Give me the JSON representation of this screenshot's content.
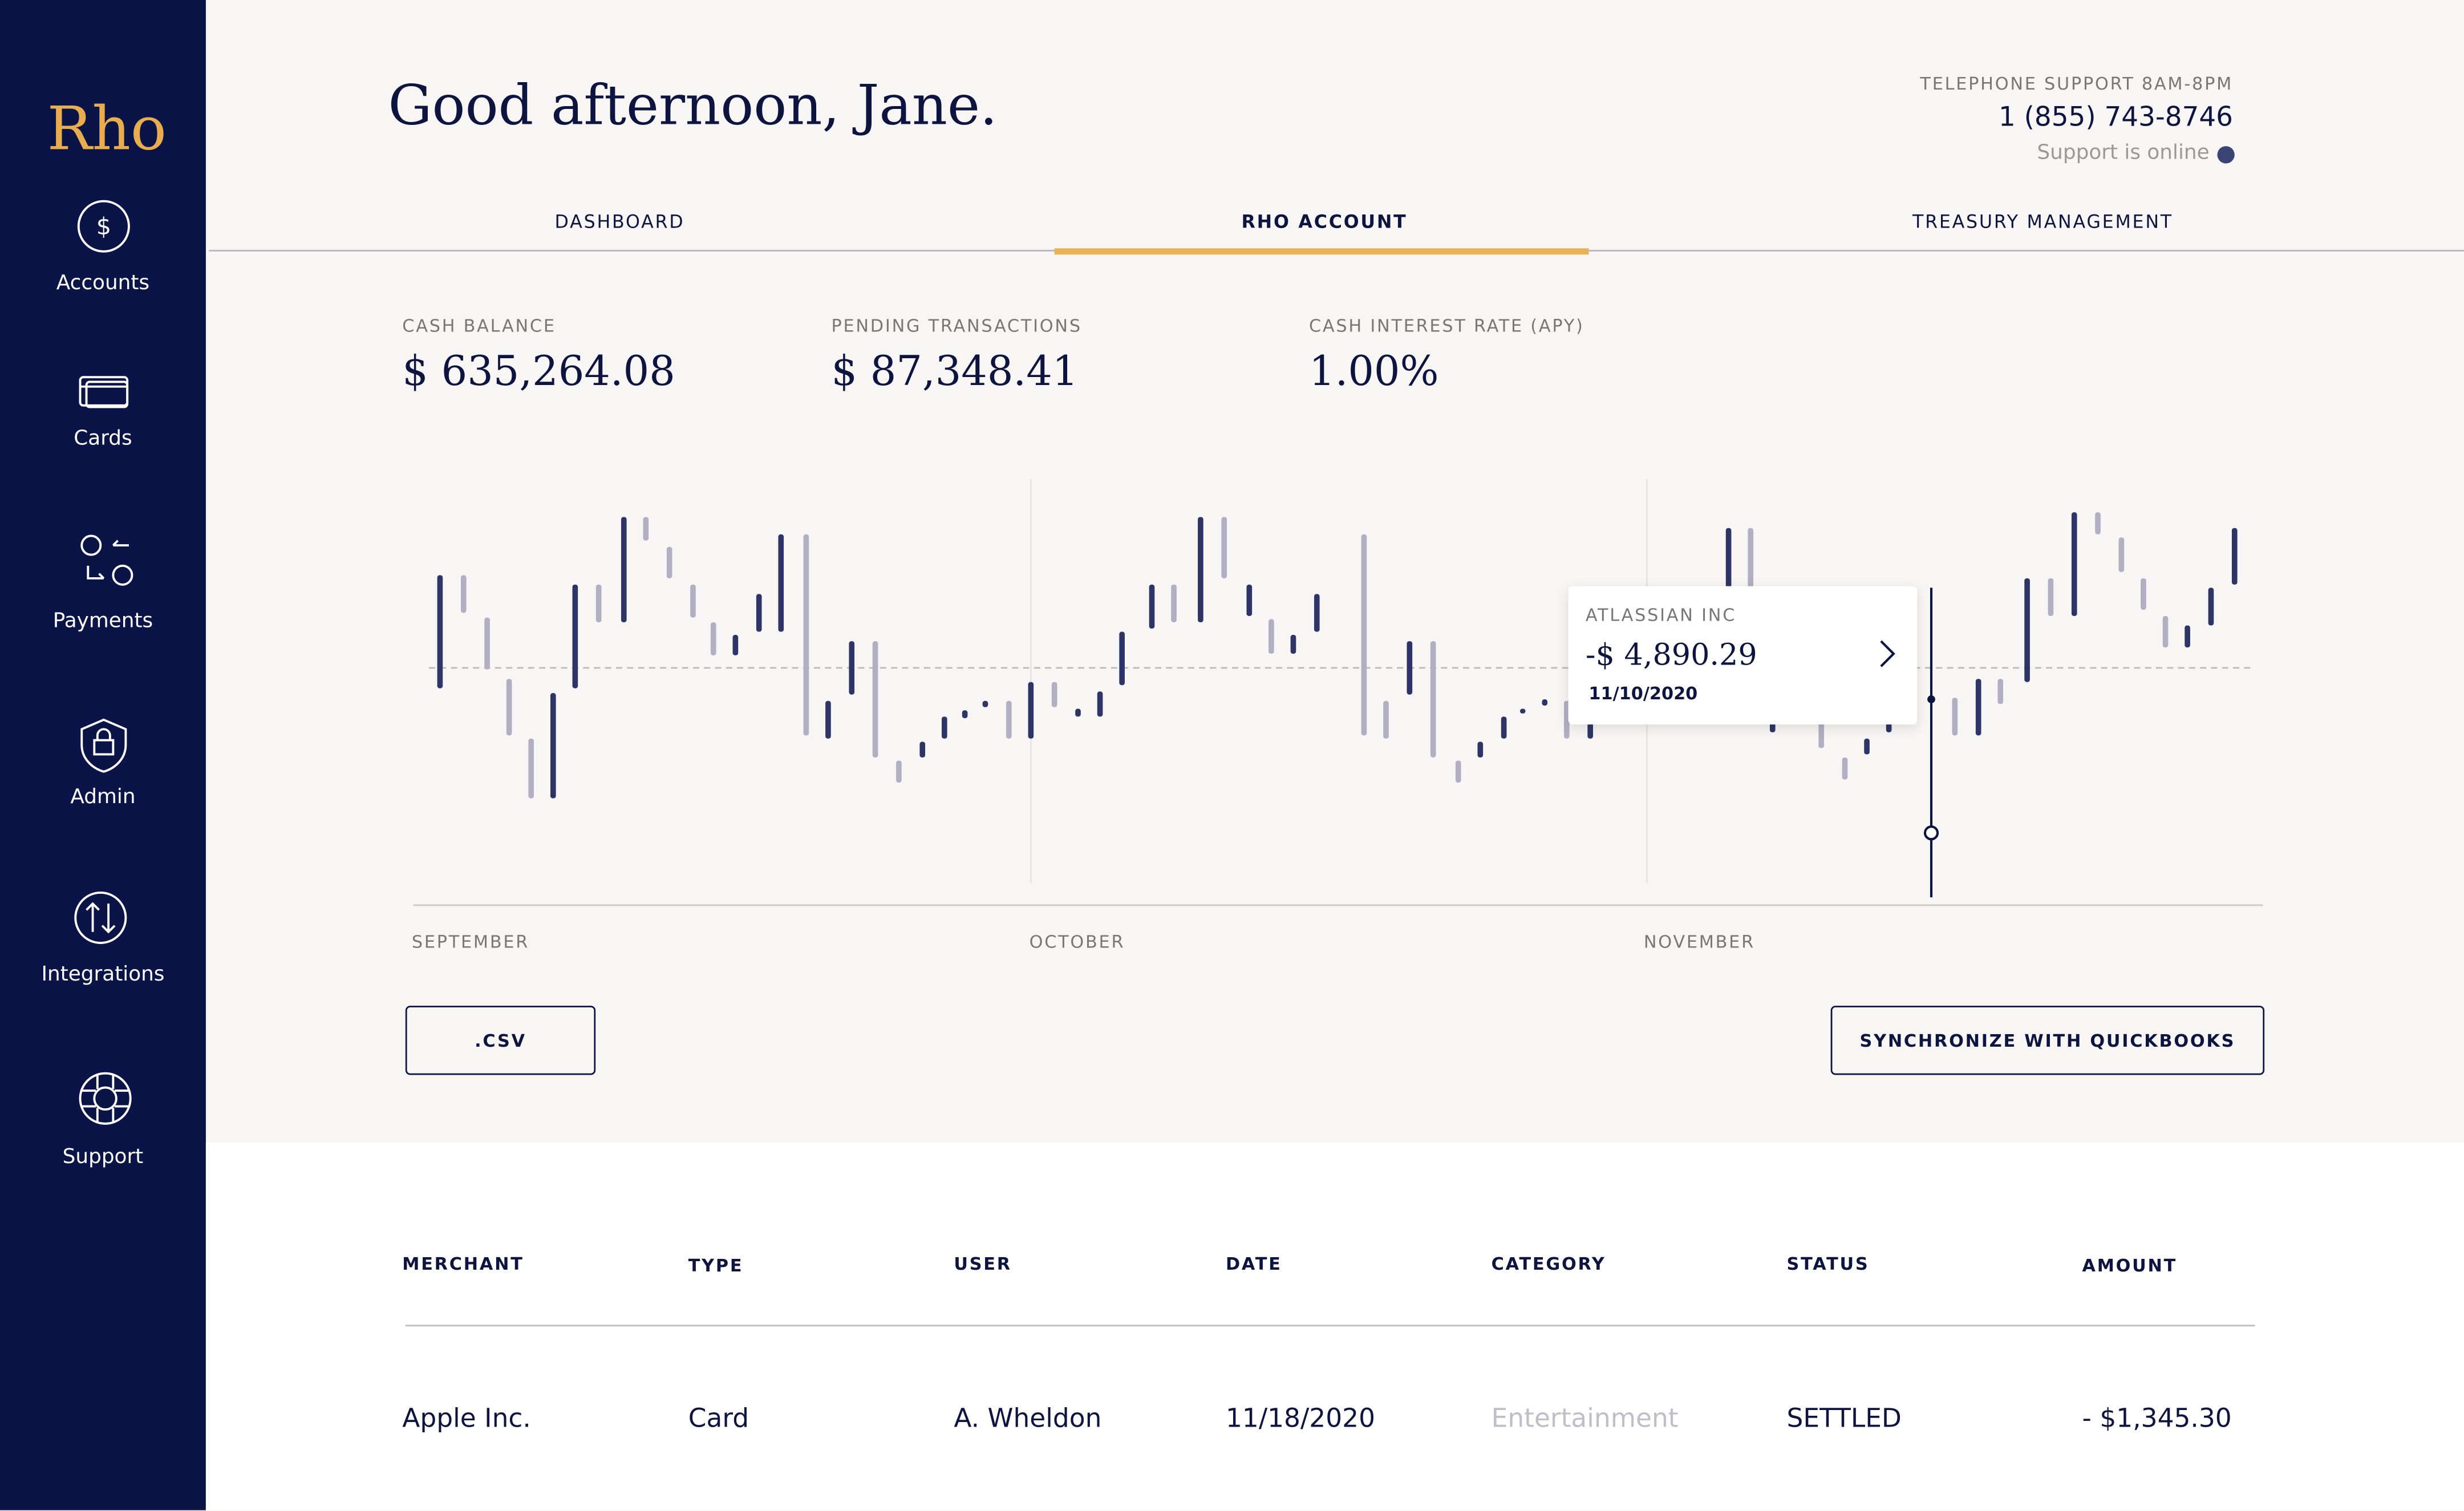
{
  "sidebar": {
    "logo": "Rho",
    "items": [
      "Accounts",
      "Cards",
      "Payments",
      "Admin",
      "Integrations",
      "Support"
    ]
  },
  "header": {
    "greeting": "Good afternoon, Jane.",
    "support_label": "TELEPHONE SUPPORT 8AM-8PM",
    "phone": "1 (855) 743-8746",
    "status": "Support is online"
  },
  "tabs": [
    "DASHBOARD",
    "RHO ACCOUNT",
    "TREASURY MANAGEMENT"
  ],
  "stats": [
    {
      "label": "CASH BALANCE",
      "value": "$ 635,264.08"
    },
    {
      "label": "PENDING TRANSACTIONS",
      "value": "$ 87,348.41"
    },
    {
      "label": "CASH INTEREST RATE (APY)",
      "value": "1.00%"
    }
  ],
  "chart": {
    "months": [
      "SEPTEMBER",
      "OCTOBER",
      "NOVEMBER"
    ],
    "tooltip": {
      "merchant": "ATLASSIAN INC",
      "amount": "-$ 4,890.29",
      "date": "11/10/2020"
    }
  },
  "buttons": [
    ".CSV",
    "SYNCHRONIZE WITH QUICKBOOKS"
  ],
  "table": {
    "headers": [
      "MERCHANT",
      "TYPE",
      "USER",
      "DATE",
      "CATEGORY",
      "STATUS",
      "AMOUNT"
    ],
    "rows": [
      [
        "Apple Inc.",
        "Card",
        "A. Wheldon",
        "11/18/2020",
        "Entertainment",
        "SETTLED",
        "- $1,345.30"
      ]
    ]
  }
}
